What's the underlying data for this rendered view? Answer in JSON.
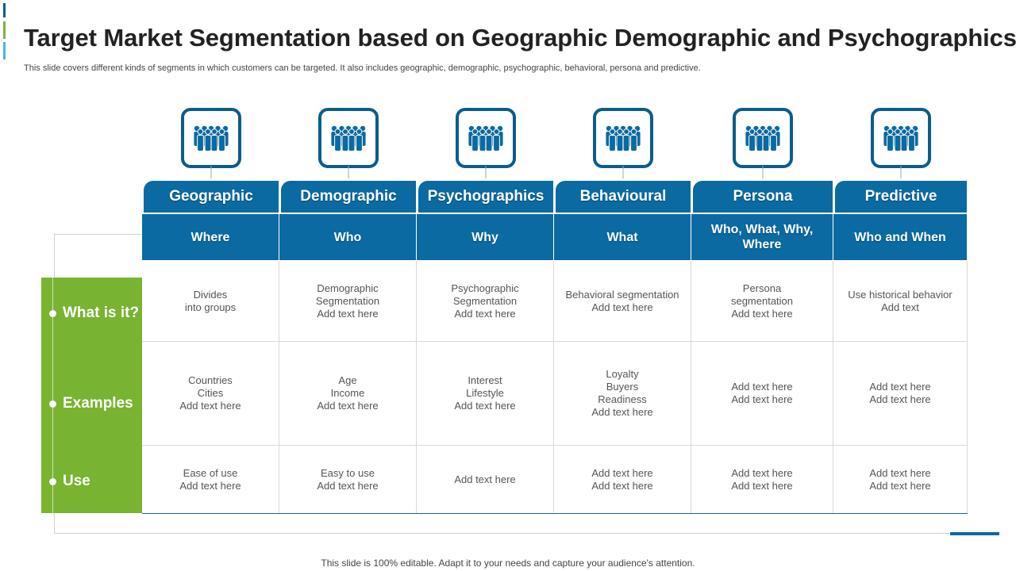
{
  "title": "Target Market Segmentation based on Geographic Demographic and Psychographics",
  "subtitle": "This slide covers different kinds of segments in which customers can be targeted. It also includes geographic, demographic, psychographic, behavioral, persona and predictive.",
  "icon": "people-group-icon",
  "colors": {
    "primary": "#0a6aa1",
    "icon_border": "#0a5d8c",
    "accent_green": "#78b332"
  },
  "columns": [
    {
      "name": "Geographic",
      "question": "Where",
      "what": "Divides\ninto groups",
      "examples": "Countries\nCities\nAdd text here",
      "use": "Ease of use\nAdd text here"
    },
    {
      "name": "Demographic",
      "question": "Who",
      "what": "Demographic\nSegmentation\nAdd text here",
      "examples": "Age\nIncome\nAdd text here",
      "use": "Easy to use\nAdd text here"
    },
    {
      "name": "Psychographics",
      "question": "Why",
      "what": "Psychographic\nSegmentation\nAdd text here",
      "examples": "Interest\nLifestyle\nAdd text here",
      "use": "Add text here"
    },
    {
      "name": "Behavioural",
      "question": "What",
      "what": "Behavioral  segmentation\nAdd text here",
      "examples": "Loyalty\nBuyers\nReadiness\nAdd text here",
      "use": "Add text here\nAdd text here"
    },
    {
      "name": "Persona",
      "question": "Who, What, Why,\nWhere",
      "what": "Persona\nsegmentation\nAdd text here",
      "examples": "Add text here\nAdd text here",
      "use": "Add text here\nAdd text here"
    },
    {
      "name": "Predictive",
      "question": "Who and When",
      "what": "Use historical behavior\nAdd text",
      "examples": "Add text here\nAdd text here",
      "use": "Add text here\nAdd text here"
    }
  ],
  "rows": {
    "what": "What is it?",
    "examples": "Examples",
    "use": "Use"
  },
  "footer": "This slide is 100% editable. Adapt it to your needs and capture your audience's attention."
}
